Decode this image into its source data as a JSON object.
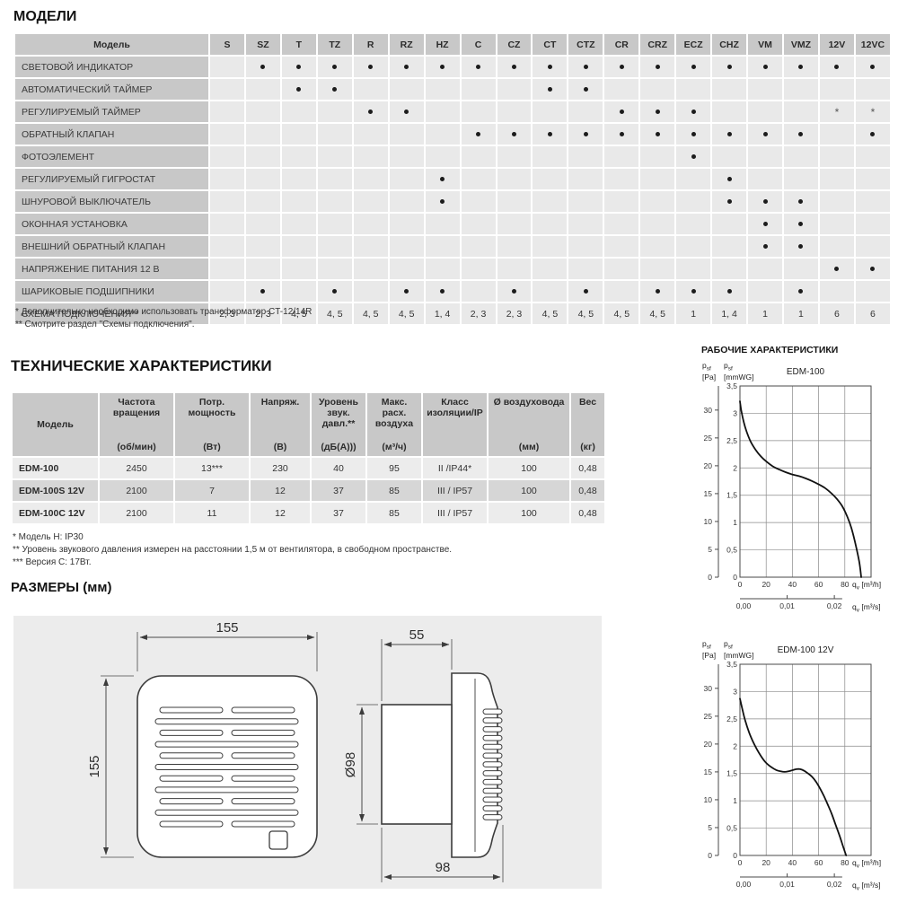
{
  "models": {
    "title": "МОДЕЛИ",
    "header_first": "Модель",
    "columns": [
      "S",
      "SZ",
      "T",
      "TZ",
      "R",
      "RZ",
      "HZ",
      "C",
      "CZ",
      "CT",
      "CTZ",
      "CR",
      "CRZ",
      "ECZ",
      "CHZ",
      "VM",
      "VMZ",
      "12V",
      "12VC"
    ],
    "rows": [
      {
        "label": "СВЕТОВОЙ ИНДИКАТОР",
        "cells": [
          "",
          "•",
          "•",
          "•",
          "•",
          "•",
          "•",
          "•",
          "•",
          "•",
          "•",
          "•",
          "•",
          "•",
          "•",
          "•",
          "•",
          "•",
          "•"
        ]
      },
      {
        "label": "АВТОМАТИЧЕСКИЙ ТАЙМЕР",
        "cells": [
          "",
          "",
          "•",
          "•",
          "",
          "",
          "",
          "",
          "",
          "•",
          "•",
          "",
          "",
          "",
          "",
          "",
          "",
          "",
          ""
        ]
      },
      {
        "label": "РЕГУЛИРУЕМЫЙ ТАЙМЕР",
        "cells": [
          "",
          "",
          "",
          "",
          "•",
          "•",
          "",
          "",
          "",
          "",
          "",
          "•",
          "•",
          "•",
          "",
          "",
          "",
          "*",
          "*"
        ]
      },
      {
        "label": "ОБРАТНЫЙ КЛАПАН",
        "cells": [
          "",
          "",
          "",
          "",
          "",
          "",
          "",
          "•",
          "•",
          "•",
          "•",
          "•",
          "•",
          "•",
          "•",
          "•",
          "•",
          "",
          "•"
        ]
      },
      {
        "label": "ФОТОЭЛЕМЕНТ",
        "cells": [
          "",
          "",
          "",
          "",
          "",
          "",
          "",
          "",
          "",
          "",
          "",
          "",
          "",
          "•",
          "",
          "",
          "",
          "",
          ""
        ]
      },
      {
        "label": "РЕГУЛИРУЕМЫЙ ГИГРОСТАТ",
        "cells": [
          "",
          "",
          "",
          "",
          "",
          "",
          "•",
          "",
          "",
          "",
          "",
          "",
          "",
          "",
          "•",
          "",
          "",
          "",
          ""
        ]
      },
      {
        "label": "ШНУРОВОЙ ВЫКЛЮЧАТЕЛЬ",
        "cells": [
          "",
          "",
          "",
          "",
          "",
          "",
          "•",
          "",
          "",
          "",
          "",
          "",
          "",
          "",
          "•",
          "•",
          "•",
          "",
          ""
        ]
      },
      {
        "label": "ОКОННАЯ УСТАНОВКА",
        "cells": [
          "",
          "",
          "",
          "",
          "",
          "",
          "",
          "",
          "",
          "",
          "",
          "",
          "",
          "",
          "",
          "•",
          "•",
          "",
          ""
        ]
      },
      {
        "label": "ВНЕШНИЙ ОБРАТНЫЙ КЛАПАН",
        "cells": [
          "",
          "",
          "",
          "",
          "",
          "",
          "",
          "",
          "",
          "",
          "",
          "",
          "",
          "",
          "",
          "•",
          "•",
          "",
          ""
        ]
      },
      {
        "label": "НАПРЯЖЕНИЕ ПИТАНИЯ 12 В",
        "cells": [
          "",
          "",
          "",
          "",
          "",
          "",
          "",
          "",
          "",
          "",
          "",
          "",
          "",
          "",
          "",
          "",
          "",
          "•",
          "•"
        ]
      },
      {
        "label": "ШАРИКОВЫЕ ПОДШИПНИКИ",
        "cells": [
          "",
          "•",
          "",
          "•",
          "",
          "•",
          "•",
          "",
          "•",
          "",
          "•",
          "",
          "•",
          "•",
          "•",
          "",
          "•",
          "",
          ""
        ]
      },
      {
        "label": "СХЕМА ПОДКЛЮЧЕНИЯ**",
        "cells": [
          "2, 3",
          "2, 3",
          "4, 5",
          "4, 5",
          "4, 5",
          "4, 5",
          "1, 4",
          "2, 3",
          "2, 3",
          "4, 5",
          "4, 5",
          "4, 5",
          "4, 5",
          "1",
          "1, 4",
          "1",
          "1",
          "6",
          "6"
        ]
      }
    ],
    "footnotes": [
      "* Дополнительно необходимо использовать трансформатор CT-12/14R",
      "** Смотрите раздел \"Схемы подключения\"."
    ]
  },
  "tech": {
    "title": "ТЕХНИЧЕСКИЕ ХАРАКТЕРИСТИКИ",
    "headers": [
      {
        "name": "Модель",
        "unit": ""
      },
      {
        "name": "Частота вращения",
        "unit": "(об/мин)"
      },
      {
        "name": "Потр. мощность",
        "unit": "(Вт)"
      },
      {
        "name": "Напряж.",
        "unit": "(В)"
      },
      {
        "name": "Уровень звук. давл.**",
        "unit": "(дБ(А)))"
      },
      {
        "name": "Макс. расх. воздуха",
        "unit": "(м³/ч)"
      },
      {
        "name": "Класс изоляции/IP",
        "unit": ""
      },
      {
        "name": "Ø воздуховода",
        "unit": "(мм)"
      },
      {
        "name": "Вес",
        "unit": "(кг)"
      }
    ],
    "rows": [
      [
        "EDM-100",
        "2450",
        "13***",
        "230",
        "40",
        "95",
        "II /IP44*",
        "100",
        "0,48"
      ],
      [
        "EDM-100S 12V",
        "2100",
        "7",
        "12",
        "37",
        "85",
        "III / IP57",
        "100",
        "0,48"
      ],
      [
        "EDM-100C 12V",
        "2100",
        "11",
        "12",
        "37",
        "85",
        "III / IP57",
        "100",
        "0,48"
      ]
    ],
    "footnotes": [
      "* Модель H: IP30",
      "** Уровень звукового давления измерен на расстоянии 1,5 м от вентилятора, в свободном пространстве.",
      "*** Версия C: 17Вт."
    ]
  },
  "dimensions": {
    "title": "РАЗМЕРЫ (мм)",
    "front_width": "155",
    "front_height": "155",
    "duct_length": "55",
    "duct_diameter": "Ø98",
    "total_depth": "98"
  },
  "performance": {
    "title": "РАБОЧИЕ ХАРАКТЕРИСТИКИ"
  },
  "chart_data": [
    {
      "type": "line",
      "title": "EDM-100",
      "y_left_label": {
        "sym": "p",
        "sub": "sf",
        "unit": "[Pa]"
      },
      "y_right_label": {
        "sym": "p",
        "sub": "sf",
        "unit": "[mmWG]"
      },
      "x_label_h": {
        "sym": "q",
        "sub": "v",
        "unit": "[m³/h]"
      },
      "x_label_s": {
        "sym": "q",
        "sub": "v",
        "unit": "[m³/s]"
      },
      "pa_ticks": [
        0,
        5,
        10,
        15,
        20,
        25,
        30
      ],
      "pa_per_mmwg": 9.80665,
      "mmwg_ticks": [
        "3,5",
        "3",
        "2,5",
        "2",
        "1,5",
        "1",
        "0,5",
        "0"
      ],
      "x_ticks_m3h": [
        0,
        20,
        40,
        60,
        80
      ],
      "x_ticks_m3s": {
        "labels": [
          "0,00",
          "0,01",
          "0,02"
        ],
        "at_m3h": [
          0,
          36,
          72
        ]
      },
      "xlim_m3h": [
        0,
        100
      ],
      "ylim_mmwg": [
        0,
        3.5
      ],
      "grid": {
        "x_step": 20,
        "y_step": 0.5
      },
      "points_m3h_mmwg": [
        [
          0,
          3.22
        ],
        [
          1,
          3.05
        ],
        [
          3,
          2.83
        ],
        [
          5,
          2.67
        ],
        [
          8,
          2.49
        ],
        [
          12,
          2.33
        ],
        [
          16,
          2.21
        ],
        [
          20,
          2.12
        ],
        [
          25,
          2.03
        ],
        [
          30,
          1.97
        ],
        [
          35,
          1.92
        ],
        [
          40,
          1.88
        ],
        [
          45,
          1.85
        ],
        [
          50,
          1.81
        ],
        [
          55,
          1.76
        ],
        [
          60,
          1.7
        ],
        [
          65,
          1.63
        ],
        [
          70,
          1.53
        ],
        [
          74,
          1.43
        ],
        [
          78,
          1.3
        ],
        [
          82,
          1.1
        ],
        [
          85,
          0.9
        ],
        [
          88,
          0.62
        ],
        [
          91,
          0.28
        ],
        [
          92.5,
          0
        ]
      ]
    },
    {
      "type": "line",
      "title": "EDM-100 12V",
      "y_left_label": {
        "sym": "p",
        "sub": "sf",
        "unit": "[Pa]"
      },
      "y_right_label": {
        "sym": "p",
        "sub": "sf",
        "unit": "[mmWG]"
      },
      "x_label_h": {
        "sym": "q",
        "sub": "v",
        "unit": "[m³/h]"
      },
      "x_label_s": {
        "sym": "q",
        "sub": "v",
        "unit": "[m³/s]"
      },
      "pa_ticks": [
        0,
        5,
        10,
        15,
        20,
        25,
        30
      ],
      "pa_per_mmwg": 9.80665,
      "mmwg_ticks": [
        "3,5",
        "3",
        "2,5",
        "2",
        "1,5",
        "1",
        "0,5",
        "0"
      ],
      "x_ticks_m3h": [
        0,
        20,
        40,
        60,
        80
      ],
      "x_ticks_m3s": {
        "labels": [
          "0,00",
          "0,01",
          "0,02"
        ],
        "at_m3h": [
          0,
          36,
          72
        ]
      },
      "xlim_m3h": [
        0,
        100
      ],
      "ylim_mmwg": [
        0,
        3.5
      ],
      "grid": {
        "x_step": 20,
        "y_step": 0.5
      },
      "points_m3h_mmwg": [
        [
          0,
          2.87
        ],
        [
          2,
          2.66
        ],
        [
          4,
          2.47
        ],
        [
          7,
          2.25
        ],
        [
          10,
          2.08
        ],
        [
          13,
          1.94
        ],
        [
          16,
          1.82
        ],
        [
          19,
          1.72
        ],
        [
          22,
          1.65
        ],
        [
          25,
          1.6
        ],
        [
          28,
          1.56
        ],
        [
          31,
          1.54
        ],
        [
          34,
          1.53
        ],
        [
          37,
          1.54
        ],
        [
          40,
          1.56
        ],
        [
          43,
          1.58
        ],
        [
          46,
          1.58
        ],
        [
          49,
          1.55
        ],
        [
          52,
          1.5
        ],
        [
          55,
          1.44
        ],
        [
          58,
          1.35
        ],
        [
          61,
          1.23
        ],
        [
          64,
          1.09
        ],
        [
          67,
          0.93
        ],
        [
          70,
          0.76
        ],
        [
          73,
          0.56
        ],
        [
          76,
          0.36
        ],
        [
          79,
          0.14
        ],
        [
          81,
          0
        ]
      ]
    }
  ],
  "colors": {
    "header_bg": "#c8c8c8",
    "cell_bg": "#e9e9e9",
    "row_alt_bg": "#d6d6d6",
    "panel_bg": "#ececec",
    "curve": "#111111",
    "grid": "#8a8a8a"
  }
}
